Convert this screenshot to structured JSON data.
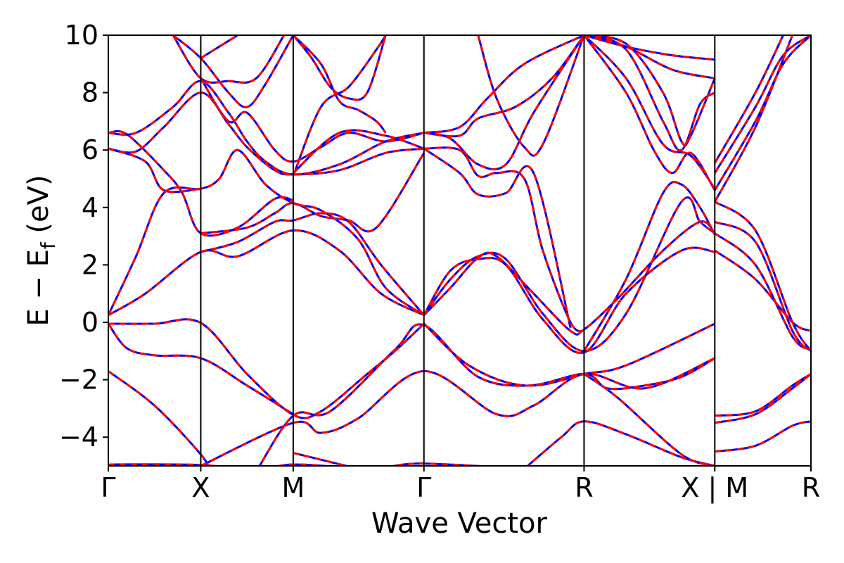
{
  "chart_data": {
    "type": "line",
    "xlabel": "Wave Vector",
    "ylabel": "E − E",
    "ylabel_sub": "f",
    "ylabel_unit": " (eV)",
    "ylim": [
      -5,
      10
    ],
    "yticks": [
      {
        "v": -4,
        "label": "−4"
      },
      {
        "v": -2,
        "label": "−2"
      },
      {
        "v": 0,
        "label": "0"
      },
      {
        "v": 2,
        "label": "2"
      },
      {
        "v": 4,
        "label": "4"
      },
      {
        "v": 6,
        "label": "6"
      },
      {
        "v": 8,
        "label": "8"
      },
      {
        "v": 10,
        "label": "10"
      }
    ],
    "xlim": [
      0,
      7.6
    ],
    "high_symmetry_points": [
      {
        "x": 0.0,
        "label": "Γ"
      },
      {
        "x": 1.0,
        "label": "X"
      },
      {
        "x": 2.0,
        "label": "M"
      },
      {
        "x": 3.414,
        "label": "Γ"
      },
      {
        "x": 5.146,
        "label": "R"
      },
      {
        "x": 6.56,
        "label": "X | M"
      },
      {
        "x": 7.6,
        "label": "R"
      }
    ],
    "series_styles": [
      {
        "color": "#0000ff",
        "width": 3,
        "dash": "none"
      },
      {
        "color": "#ff0000",
        "width": 3,
        "dash": "9,7"
      }
    ],
    "bands": [
      [
        [
          0,
          -4.95
        ],
        [
          1,
          -4.97
        ],
        [
          1.6,
          -5.2
        ]
      ],
      [
        [
          1.6,
          -5.2
        ],
        [
          2,
          -4.95
        ],
        [
          2.7,
          -5.1
        ]
      ],
      [
        [
          2,
          -4.55
        ],
        [
          2.7,
          -5.1
        ]
      ],
      [
        [
          3.0,
          -5.05
        ],
        [
          3.414,
          -4.92
        ],
        [
          4.5,
          -5.1
        ]
      ],
      [
        [
          4.5,
          -5.1
        ],
        [
          4.9,
          -4.0
        ],
        [
          5.146,
          -3.45
        ],
        [
          5.6,
          -3.9
        ],
        [
          6.2,
          -4.7
        ],
        [
          6.56,
          -5.0
        ]
      ],
      [
        [
          0,
          -1.7
        ],
        [
          0.5,
          -2.9
        ],
        [
          1.0,
          -4.6
        ],
        [
          1.1,
          -5.2
        ]
      ],
      [
        [
          1.0,
          -5.0
        ],
        [
          2.0,
          -3.5
        ],
        [
          2.3,
          -3.85
        ],
        [
          2.7,
          -3.35
        ],
        [
          3.414,
          -1.7
        ],
        [
          4.2,
          -3.2
        ],
        [
          4.6,
          -2.9
        ],
        [
          5.146,
          -1.8
        ],
        [
          5.8,
          -2.3
        ],
        [
          6.56,
          -1.25
        ]
      ],
      [
        [
          1.6,
          -5.2
        ],
        [
          2.0,
          -3.25
        ],
        [
          2.4,
          -3.1
        ],
        [
          3.1,
          -0.95
        ],
        [
          3.414,
          -0.1
        ],
        [
          4.0,
          -1.9
        ],
        [
          4.6,
          -2.2
        ],
        [
          5.146,
          -1.8
        ],
        [
          5.6,
          -1.5
        ],
        [
          6.56,
          -0.05
        ]
      ],
      [
        [
          0,
          -0.05
        ],
        [
          0.5,
          -0.05
        ],
        [
          1.0,
          -0.02
        ],
        [
          1.5,
          -1.8
        ],
        [
          2.0,
          -3.22
        ],
        [
          2.3,
          -3.1
        ],
        [
          2.8,
          -1.8
        ],
        [
          3.1,
          -1.0
        ],
        [
          3.414,
          -0.05
        ]
      ],
      [
        [
          0,
          -0.05
        ],
        [
          0.2,
          -0.9
        ],
        [
          0.5,
          -1.15
        ],
        [
          1.0,
          -1.25
        ],
        [
          1.5,
          -2.2
        ],
        [
          2.0,
          -3.2
        ]
      ],
      [
        [
          3.414,
          -0.05
        ],
        [
          3.9,
          -1.5
        ],
        [
          4.5,
          -2.2
        ],
        [
          5.146,
          -1.8
        ],
        [
          5.4,
          -2.3
        ],
        [
          5.8,
          -2.2
        ],
        [
          6.2,
          -1.9
        ],
        [
          6.56,
          -1.25
        ]
      ],
      [
        [
          5.146,
          -1.8
        ],
        [
          5.5,
          -2.6
        ],
        [
          6.2,
          -4.6
        ],
        [
          6.56,
          -5.0
        ]
      ],
      [
        [
          6.56,
          -3.25
        ],
        [
          7.0,
          -3.1
        ],
        [
          7.4,
          -2.2
        ],
        [
          7.6,
          -1.8
        ]
      ],
      [
        [
          6.56,
          -3.5
        ],
        [
          7.0,
          -3.2
        ],
        [
          7.4,
          -2.3
        ],
        [
          7.6,
          -1.8
        ]
      ],
      [
        [
          6.56,
          -4.5
        ],
        [
          7.0,
          -4.3
        ],
        [
          7.4,
          -3.6
        ],
        [
          7.6,
          -3.45
        ]
      ],
      [
        [
          0,
          0.25
        ],
        [
          0.4,
          1.0
        ],
        [
          1.0,
          2.45
        ],
        [
          1.4,
          2.3
        ],
        [
          2.0,
          3.2
        ],
        [
          2.5,
          2.5
        ],
        [
          2.95,
          1.0
        ],
        [
          3.414,
          0.25
        ]
      ],
      [
        [
          0,
          0.25
        ],
        [
          0.3,
          2.3
        ],
        [
          0.6,
          4.5
        ],
        [
          1.0,
          4.65
        ],
        [
          1.2,
          5.0
        ],
        [
          1.4,
          6.0
        ],
        [
          1.7,
          4.8
        ],
        [
          2.0,
          4.15
        ],
        [
          2.3,
          3.9
        ],
        [
          2.7,
          2.9
        ],
        [
          3.0,
          1.2
        ],
        [
          3.414,
          0.25
        ]
      ],
      [
        [
          3.414,
          0.25
        ],
        [
          3.7,
          1.2
        ],
        [
          4.0,
          2.25
        ],
        [
          4.2,
          2.3
        ],
        [
          4.6,
          1.0
        ],
        [
          5.0,
          -0.3
        ],
        [
          5.146,
          -0.25
        ],
        [
          5.5,
          0.8
        ],
        [
          6.0,
          2.5
        ],
        [
          6.4,
          3.5
        ],
        [
          6.56,
          3.1
        ]
      ],
      [
        [
          3.414,
          0.25
        ],
        [
          3.7,
          1.5
        ],
        [
          4.0,
          2.3
        ],
        [
          4.3,
          2.2
        ],
        [
          4.7,
          0.3
        ],
        [
          5.146,
          -1.0
        ],
        [
          5.6,
          0.3
        ],
        [
          6.2,
          4.2
        ],
        [
          6.4,
          3.5
        ],
        [
          6.56,
          3.1
        ]
      ],
      [
        [
          3.414,
          0.25
        ],
        [
          3.7,
          1.8
        ],
        [
          4.0,
          2.2
        ],
        [
          4.3,
          2.0
        ],
        [
          4.7,
          0.1
        ],
        [
          5.146,
          -1.05
        ],
        [
          5.6,
          1.0
        ],
        [
          6.2,
          2.5
        ],
        [
          6.56,
          2.45
        ]
      ],
      [
        [
          5.146,
          -1.0
        ],
        [
          5.6,
          1.5
        ],
        [
          6.0,
          4.5
        ],
        [
          6.2,
          4.8
        ],
        [
          6.4,
          4.0
        ],
        [
          6.56,
          3.05
        ]
      ],
      [
        [
          1.0,
          2.45
        ],
        [
          1.4,
          2.8
        ],
        [
          1.8,
          3.5
        ],
        [
          2.0,
          3.55
        ],
        [
          2.3,
          3.8
        ],
        [
          2.6,
          3.5
        ],
        [
          2.95,
          2.0
        ],
        [
          3.414,
          0.25
        ]
      ],
      [
        [
          1.0,
          3.1
        ],
        [
          1.5,
          3.3
        ],
        [
          1.8,
          3.8
        ],
        [
          2.0,
          4.15
        ],
        [
          2.3,
          3.7
        ],
        [
          2.6,
          3.55
        ],
        [
          2.9,
          3.3
        ],
        [
          3.414,
          5.9
        ]
      ],
      [
        [
          6.56,
          2.5
        ],
        [
          7.0,
          1.5
        ],
        [
          7.4,
          0.0
        ],
        [
          7.6,
          -0.3
        ]
      ],
      [
        [
          6.56,
          3.1
        ],
        [
          7.0,
          2.0
        ],
        [
          7.4,
          -0.5
        ],
        [
          7.6,
          -0.95
        ]
      ],
      [
        [
          6.56,
          3.5
        ],
        [
          7.0,
          2.8
        ],
        [
          7.4,
          -0.3
        ],
        [
          7.6,
          -1.0
        ]
      ],
      [
        [
          6.56,
          4.2
        ],
        [
          7.0,
          3.2
        ],
        [
          7.4,
          0.0
        ],
        [
          7.6,
          -1.0
        ]
      ],
      [
        [
          0,
          6.05
        ],
        [
          0.4,
          5.6
        ],
        [
          0.6,
          4.6
        ],
        [
          1.0,
          4.65
        ]
      ],
      [
        [
          0,
          6.6
        ],
        [
          0.2,
          6.55
        ],
        [
          0.6,
          5.3
        ],
        [
          0.8,
          4.5
        ],
        [
          1.0,
          3.1
        ],
        [
          1.4,
          3.3
        ],
        [
          1.8,
          4.3
        ],
        [
          2.0,
          4.25
        ]
      ],
      [
        [
          0,
          6.05
        ],
        [
          0.3,
          5.95
        ],
        [
          0.6,
          6.8
        ],
        [
          1.0,
          8.0
        ],
        [
          1.3,
          6.9
        ],
        [
          1.5,
          6.1
        ],
        [
          1.8,
          5.3
        ],
        [
          2.0,
          5.15
        ],
        [
          2.5,
          5.3
        ],
        [
          3.0,
          5.9
        ],
        [
          3.414,
          6.05
        ]
      ],
      [
        [
          0,
          6.6
        ],
        [
          0.3,
          6.6
        ],
        [
          0.7,
          7.5
        ],
        [
          1.0,
          8.4
        ],
        [
          1.3,
          7.3
        ],
        [
          1.5,
          6.3
        ],
        [
          1.7,
          5.6
        ],
        [
          2.0,
          5.15
        ],
        [
          2.5,
          5.5
        ],
        [
          3.0,
          6.3
        ],
        [
          3.414,
          6.6
        ]
      ],
      [
        [
          1.0,
          8.5
        ],
        [
          1.3,
          7.0
        ],
        [
          1.5,
          7.3
        ],
        [
          1.8,
          6.0
        ],
        [
          2.0,
          5.6
        ],
        [
          2.3,
          6.1
        ],
        [
          2.6,
          6.6
        ],
        [
          3.0,
          6.3
        ],
        [
          3.414,
          6.6
        ]
      ],
      [
        [
          2.0,
          5.1
        ],
        [
          2.3,
          7.5
        ],
        [
          2.6,
          8.2
        ],
        [
          2.9,
          9.5
        ],
        [
          3.0,
          10.0
        ]
      ],
      [
        [
          2.0,
          5.2
        ],
        [
          2.5,
          6.6
        ],
        [
          3.0,
          6.5
        ],
        [
          3.414,
          6.05
        ]
      ],
      [
        [
          0.7,
          10.0
        ],
        [
          1.0,
          9.2
        ],
        [
          1.3,
          8.0
        ],
        [
          1.5,
          7.5
        ],
        [
          1.7,
          8.3
        ],
        [
          2.0,
          10.0
        ]
      ],
      [
        [
          0.7,
          10.0
        ],
        [
          1.0,
          8.5
        ],
        [
          1.3,
          8.4
        ],
        [
          1.6,
          8.5
        ],
        [
          1.9,
          10.0
        ]
      ],
      [
        [
          1.0,
          9.2
        ],
        [
          1.4,
          10.0
        ]
      ],
      [
        [
          2.0,
          10.0
        ],
        [
          2.2,
          9.2
        ],
        [
          2.4,
          8.2
        ],
        [
          2.6,
          7.8
        ],
        [
          2.8,
          8.0
        ],
        [
          3.0,
          10.0
        ]
      ],
      [
        [
          2.0,
          10.0
        ],
        [
          2.3,
          9.0
        ],
        [
          2.5,
          7.7
        ],
        [
          2.7,
          7.4
        ],
        [
          2.9,
          7.0
        ],
        [
          3.0,
          6.6
        ]
      ],
      [
        [
          3.414,
          6.05
        ],
        [
          3.8,
          6.0
        ],
        [
          4.0,
          5.1
        ],
        [
          4.2,
          5.2
        ],
        [
          4.5,
          5.0
        ],
        [
          4.7,
          2.5
        ],
        [
          5.0,
          0.0
        ],
        [
          5.146,
          -0.3
        ]
      ],
      [
        [
          3.414,
          6.05
        ],
        [
          3.8,
          5.2
        ],
        [
          4.0,
          4.45
        ],
        [
          4.3,
          4.5
        ],
        [
          4.6,
          5.2
        ],
        [
          5.0,
          -0.2
        ]
      ],
      [
        [
          3.414,
          6.6
        ],
        [
          3.8,
          6.5
        ],
        [
          4.0,
          7.1
        ],
        [
          4.4,
          7.5
        ],
        [
          4.8,
          8.5
        ],
        [
          5.146,
          10.0
        ]
      ],
      [
        [
          3.414,
          6.6
        ],
        [
          3.8,
          6.8
        ],
        [
          4.1,
          7.8
        ],
        [
          4.5,
          9.0
        ],
        [
          5.146,
          10.0
        ]
      ],
      [
        [
          4.0,
          10.0
        ],
        [
          4.2,
          7.8
        ],
        [
          4.5,
          6.1
        ],
        [
          4.7,
          6.2
        ],
        [
          5.146,
          10.0
        ]
      ],
      [
        [
          3.414,
          6.6
        ],
        [
          3.7,
          6.4
        ],
        [
          4.0,
          5.5
        ],
        [
          4.3,
          5.5
        ],
        [
          4.6,
          7.3
        ],
        [
          5.146,
          10.0
        ]
      ],
      [
        [
          5.146,
          10.0
        ],
        [
          5.6,
          8.5
        ],
        [
          6.0,
          6.2
        ],
        [
          6.3,
          5.8
        ],
        [
          6.56,
          4.65
        ]
      ],
      [
        [
          5.146,
          10.0
        ],
        [
          5.6,
          8.0
        ],
        [
          5.9,
          6.0
        ],
        [
          6.1,
          5.2
        ],
        [
          6.3,
          5.9
        ],
        [
          6.56,
          4.6
        ]
      ],
      [
        [
          5.146,
          10.0
        ],
        [
          5.6,
          9.5
        ],
        [
          6.0,
          7.0
        ],
        [
          6.2,
          6.0
        ],
        [
          6.4,
          7.6
        ],
        [
          6.56,
          8.0
        ]
      ],
      [
        [
          5.146,
          10.0
        ],
        [
          5.6,
          9.7
        ],
        [
          6.0,
          8.0
        ],
        [
          6.2,
          6.3
        ],
        [
          6.3,
          6.5
        ],
        [
          6.56,
          8.5
        ]
      ],
      [
        [
          5.146,
          10.0
        ],
        [
          5.6,
          9.6
        ],
        [
          6.1,
          9.3
        ],
        [
          6.56,
          9.15
        ]
      ],
      [
        [
          5.146,
          10.0
        ],
        [
          5.6,
          9.6
        ],
        [
          6.1,
          8.8
        ],
        [
          6.56,
          8.5
        ]
      ],
      [
        [
          6.56,
          4.6
        ],
        [
          7.0,
          7.0
        ],
        [
          7.3,
          9.0
        ],
        [
          7.6,
          10.0
        ]
      ],
      [
        [
          6.56,
          5.2
        ],
        [
          7.0,
          7.5
        ],
        [
          7.3,
          9.3
        ],
        [
          7.6,
          10.0
        ]
      ],
      [
        [
          6.56,
          5.55
        ],
        [
          7.0,
          8.0
        ],
        [
          7.3,
          10.0
        ]
      ],
      [
        [
          6.56,
          4.2
        ],
        [
          7.0,
          6.8
        ],
        [
          7.4,
          10.0
        ]
      ]
    ]
  }
}
